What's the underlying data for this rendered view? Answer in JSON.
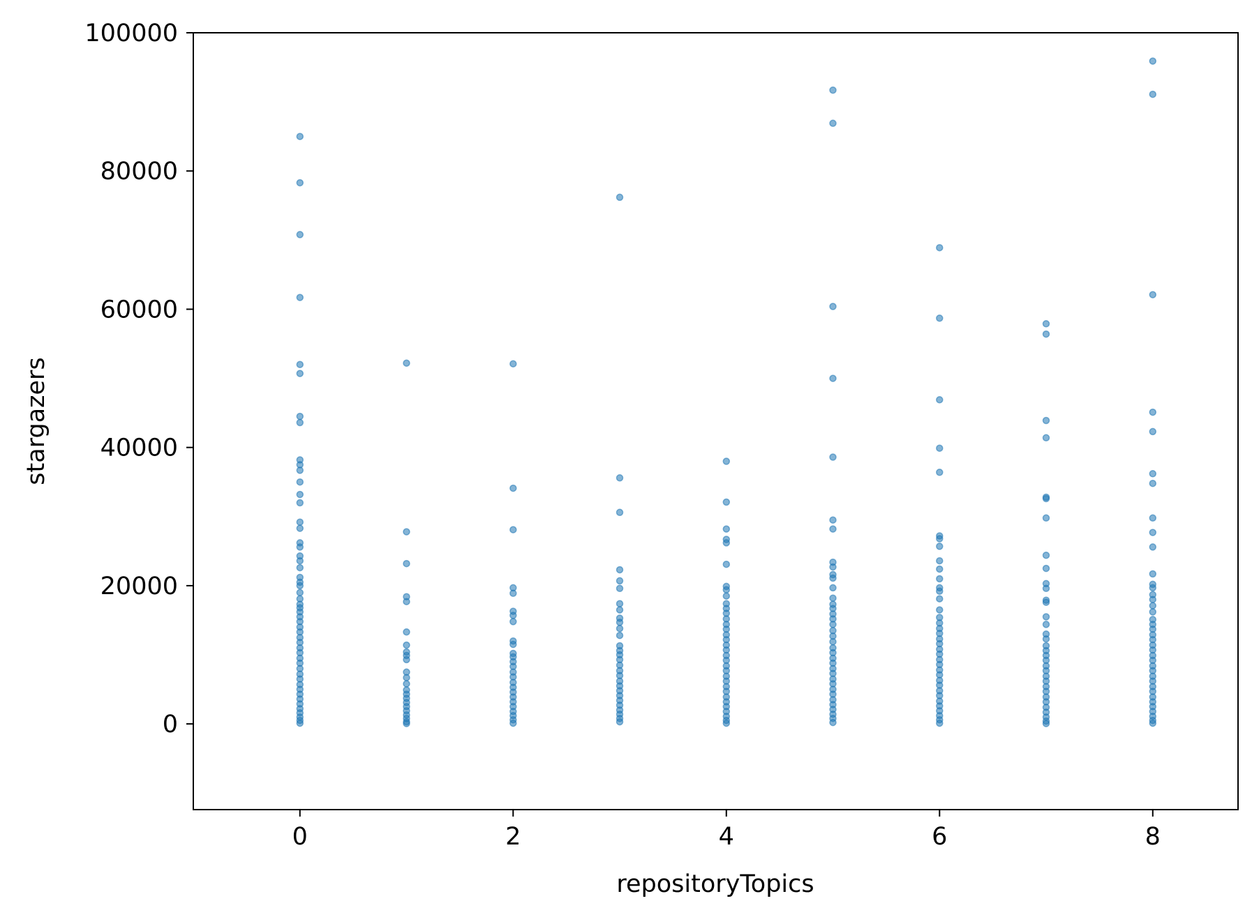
{
  "chart_data": {
    "type": "scatter",
    "title": "",
    "xlabel": "repositoryTopics",
    "ylabel": "stargazers",
    "xlim": [
      -1,
      8.8
    ],
    "ylim": [
      -12400,
      100000
    ],
    "xticks": [
      0,
      2,
      4,
      6,
      8
    ],
    "xtick_labels": [
      "0",
      "2",
      "4",
      "6",
      "8"
    ],
    "yticks": [
      0,
      20000,
      40000,
      60000,
      80000,
      100000
    ],
    "ytick_labels": [
      "0",
      "20000",
      "40000",
      "60000",
      "80000",
      "100000"
    ],
    "grid": false,
    "legend": "none",
    "marker_color": "#1f77b4",
    "marker_alpha": 0.55,
    "series": [
      {
        "points": [
          [
            0,
            85000
          ],
          [
            0,
            78300
          ],
          [
            0,
            70800
          ],
          [
            0,
            61700
          ],
          [
            0,
            52000
          ],
          [
            0,
            50700
          ],
          [
            0,
            44500
          ],
          [
            0,
            43600
          ],
          [
            0,
            38200
          ],
          [
            0,
            37500
          ],
          [
            0,
            36700
          ],
          [
            0,
            35000
          ],
          [
            0,
            33200
          ],
          [
            0,
            32000
          ],
          [
            0,
            29200
          ],
          [
            0,
            28300
          ],
          [
            0,
            26200
          ],
          [
            0,
            25600
          ],
          [
            0,
            24300
          ],
          [
            0,
            23600
          ],
          [
            0,
            22600
          ],
          [
            0,
            21200
          ],
          [
            0,
            20500
          ],
          [
            0,
            20000
          ],
          [
            0,
            19000
          ],
          [
            0,
            18100
          ],
          [
            0,
            17300
          ],
          [
            0,
            16800
          ],
          [
            0,
            16200
          ],
          [
            0,
            15500
          ],
          [
            0,
            14800
          ],
          [
            0,
            14000
          ],
          [
            0,
            13300
          ],
          [
            0,
            12500
          ],
          [
            0,
            11800
          ],
          [
            0,
            11000
          ],
          [
            0,
            10300
          ],
          [
            0,
            9500
          ],
          [
            0,
            8800
          ],
          [
            0,
            8000
          ],
          [
            0,
            7200
          ],
          [
            0,
            6500
          ],
          [
            0,
            5700
          ],
          [
            0,
            5000
          ],
          [
            0,
            4300
          ],
          [
            0,
            3600
          ],
          [
            0,
            2900
          ],
          [
            0,
            2200
          ],
          [
            0,
            1600
          ],
          [
            0,
            1000
          ],
          [
            0,
            500
          ],
          [
            0,
            100
          ],
          [
            1,
            52200
          ],
          [
            1,
            27800
          ],
          [
            1,
            23200
          ],
          [
            1,
            18400
          ],
          [
            1,
            17700
          ],
          [
            1,
            13300
          ],
          [
            1,
            11400
          ],
          [
            1,
            10400
          ],
          [
            1,
            9900
          ],
          [
            1,
            9300
          ],
          [
            1,
            7500
          ],
          [
            1,
            6700
          ],
          [
            1,
            5800
          ],
          [
            1,
            4900
          ],
          [
            1,
            4300
          ],
          [
            1,
            3700
          ],
          [
            1,
            3100
          ],
          [
            1,
            2500
          ],
          [
            1,
            1900
          ],
          [
            1,
            1300
          ],
          [
            1,
            800
          ],
          [
            1,
            300
          ],
          [
            1,
            50
          ],
          [
            2,
            52100
          ],
          [
            2,
            34100
          ],
          [
            2,
            28100
          ],
          [
            2,
            19700
          ],
          [
            2,
            18900
          ],
          [
            2,
            16300
          ],
          [
            2,
            15700
          ],
          [
            2,
            14800
          ],
          [
            2,
            12000
          ],
          [
            2,
            11500
          ],
          [
            2,
            10200
          ],
          [
            2,
            9700
          ],
          [
            2,
            9000
          ],
          [
            2,
            8300
          ],
          [
            2,
            7500
          ],
          [
            2,
            6800
          ],
          [
            2,
            6000
          ],
          [
            2,
            5300
          ],
          [
            2,
            4600
          ],
          [
            2,
            3900
          ],
          [
            2,
            3200
          ],
          [
            2,
            2500
          ],
          [
            2,
            1800
          ],
          [
            2,
            1200
          ],
          [
            2,
            600
          ],
          [
            2,
            100
          ],
          [
            3,
            76200
          ],
          [
            3,
            35600
          ],
          [
            3,
            30600
          ],
          [
            3,
            22300
          ],
          [
            3,
            20700
          ],
          [
            3,
            19600
          ],
          [
            3,
            17400
          ],
          [
            3,
            16500
          ],
          [
            3,
            15300
          ],
          [
            3,
            14700
          ],
          [
            3,
            13800
          ],
          [
            3,
            12800
          ],
          [
            3,
            11300
          ],
          [
            3,
            10600
          ],
          [
            3,
            10000
          ],
          [
            3,
            9300
          ],
          [
            3,
            8500
          ],
          [
            3,
            7700
          ],
          [
            3,
            7000
          ],
          [
            3,
            6200
          ],
          [
            3,
            5500
          ],
          [
            3,
            4800
          ],
          [
            3,
            4100
          ],
          [
            3,
            3400
          ],
          [
            3,
            2700
          ],
          [
            3,
            2000
          ],
          [
            3,
            1400
          ],
          [
            3,
            800
          ],
          [
            3,
            300
          ],
          [
            4,
            38000
          ],
          [
            4,
            32100
          ],
          [
            4,
            28200
          ],
          [
            4,
            26700
          ],
          [
            4,
            26200
          ],
          [
            4,
            23100
          ],
          [
            4,
            19900
          ],
          [
            4,
            19400
          ],
          [
            4,
            18500
          ],
          [
            4,
            17400
          ],
          [
            4,
            16700
          ],
          [
            4,
            16000
          ],
          [
            4,
            15200
          ],
          [
            4,
            14400
          ],
          [
            4,
            13700
          ],
          [
            4,
            12900
          ],
          [
            4,
            12200
          ],
          [
            4,
            11400
          ],
          [
            4,
            10700
          ],
          [
            4,
            9900
          ],
          [
            4,
            9200
          ],
          [
            4,
            8400
          ],
          [
            4,
            7700
          ],
          [
            4,
            6900
          ],
          [
            4,
            6200
          ],
          [
            4,
            5400
          ],
          [
            4,
            4700
          ],
          [
            4,
            3900
          ],
          [
            4,
            3200
          ],
          [
            4,
            2500
          ],
          [
            4,
            1800
          ],
          [
            4,
            1100
          ],
          [
            4,
            500
          ],
          [
            4,
            100
          ],
          [
            5,
            91700
          ],
          [
            5,
            86900
          ],
          [
            5,
            60400
          ],
          [
            5,
            50000
          ],
          [
            5,
            38600
          ],
          [
            5,
            29500
          ],
          [
            5,
            28200
          ],
          [
            5,
            23400
          ],
          [
            5,
            22700
          ],
          [
            5,
            21600
          ],
          [
            5,
            21100
          ],
          [
            5,
            19700
          ],
          [
            5,
            18200
          ],
          [
            5,
            17300
          ],
          [
            5,
            16700
          ],
          [
            5,
            15900
          ],
          [
            5,
            15200
          ],
          [
            5,
            14400
          ],
          [
            5,
            13500
          ],
          [
            5,
            12700
          ],
          [
            5,
            11900
          ],
          [
            5,
            11000
          ],
          [
            5,
            10300
          ],
          [
            5,
            9500
          ],
          [
            5,
            8800
          ],
          [
            5,
            8000
          ],
          [
            5,
            7300
          ],
          [
            5,
            6500
          ],
          [
            5,
            5800
          ],
          [
            5,
            5000
          ],
          [
            5,
            4300
          ],
          [
            5,
            3500
          ],
          [
            5,
            2800
          ],
          [
            5,
            2100
          ],
          [
            5,
            1400
          ],
          [
            5,
            800
          ],
          [
            5,
            200
          ],
          [
            6,
            68900
          ],
          [
            6,
            58700
          ],
          [
            6,
            46900
          ],
          [
            6,
            39900
          ],
          [
            6,
            36400
          ],
          [
            6,
            27200
          ],
          [
            6,
            26800
          ],
          [
            6,
            25700
          ],
          [
            6,
            23600
          ],
          [
            6,
            22400
          ],
          [
            6,
            21000
          ],
          [
            6,
            19700
          ],
          [
            6,
            19200
          ],
          [
            6,
            18100
          ],
          [
            6,
            16500
          ],
          [
            6,
            15400
          ],
          [
            6,
            14600
          ],
          [
            6,
            13800
          ],
          [
            6,
            13100
          ],
          [
            6,
            12300
          ],
          [
            6,
            11600
          ],
          [
            6,
            10800
          ],
          [
            6,
            10100
          ],
          [
            6,
            9300
          ],
          [
            6,
            8600
          ],
          [
            6,
            7800
          ],
          [
            6,
            7100
          ],
          [
            6,
            6300
          ],
          [
            6,
            5600
          ],
          [
            6,
            4800
          ],
          [
            6,
            4100
          ],
          [
            6,
            3300
          ],
          [
            6,
            2600
          ],
          [
            6,
            1900
          ],
          [
            6,
            1200
          ],
          [
            6,
            600
          ],
          [
            6,
            100
          ],
          [
            7,
            57900
          ],
          [
            7,
            56400
          ],
          [
            7,
            43900
          ],
          [
            7,
            41400
          ],
          [
            7,
            32800
          ],
          [
            7,
            32600
          ],
          [
            7,
            29800
          ],
          [
            7,
            24400
          ],
          [
            7,
            22500
          ],
          [
            7,
            20300
          ],
          [
            7,
            19600
          ],
          [
            7,
            17900
          ],
          [
            7,
            17600
          ],
          [
            7,
            15500
          ],
          [
            7,
            14400
          ],
          [
            7,
            13000
          ],
          [
            7,
            12300
          ],
          [
            7,
            11300
          ],
          [
            7,
            10600
          ],
          [
            7,
            9900
          ],
          [
            7,
            9200
          ],
          [
            7,
            8400
          ],
          [
            7,
            7700
          ],
          [
            7,
            6900
          ],
          [
            7,
            6200
          ],
          [
            7,
            5400
          ],
          [
            7,
            4700
          ],
          [
            7,
            3900
          ],
          [
            7,
            3200
          ],
          [
            7,
            2400
          ],
          [
            7,
            1700
          ],
          [
            7,
            1000
          ],
          [
            7,
            400
          ],
          [
            7,
            50
          ],
          [
            8,
            95900
          ],
          [
            8,
            91100
          ],
          [
            8,
            62100
          ],
          [
            8,
            45100
          ],
          [
            8,
            42300
          ],
          [
            8,
            36200
          ],
          [
            8,
            34800
          ],
          [
            8,
            29800
          ],
          [
            8,
            27700
          ],
          [
            8,
            25600
          ],
          [
            8,
            21700
          ],
          [
            8,
            20200
          ],
          [
            8,
            19700
          ],
          [
            8,
            18700
          ],
          [
            8,
            18000
          ],
          [
            8,
            17100
          ],
          [
            8,
            16200
          ],
          [
            8,
            15100
          ],
          [
            8,
            14400
          ],
          [
            8,
            13700
          ],
          [
            8,
            12900
          ],
          [
            8,
            12200
          ],
          [
            8,
            11400
          ],
          [
            8,
            10700
          ],
          [
            8,
            9900
          ],
          [
            8,
            9200
          ],
          [
            8,
            8400
          ],
          [
            8,
            7700
          ],
          [
            8,
            6900
          ],
          [
            8,
            6200
          ],
          [
            8,
            5400
          ],
          [
            8,
            4700
          ],
          [
            8,
            3900
          ],
          [
            8,
            3200
          ],
          [
            8,
            2500
          ],
          [
            8,
            1800
          ],
          [
            8,
            1100
          ],
          [
            8,
            500
          ],
          [
            8,
            100
          ]
        ]
      }
    ]
  }
}
